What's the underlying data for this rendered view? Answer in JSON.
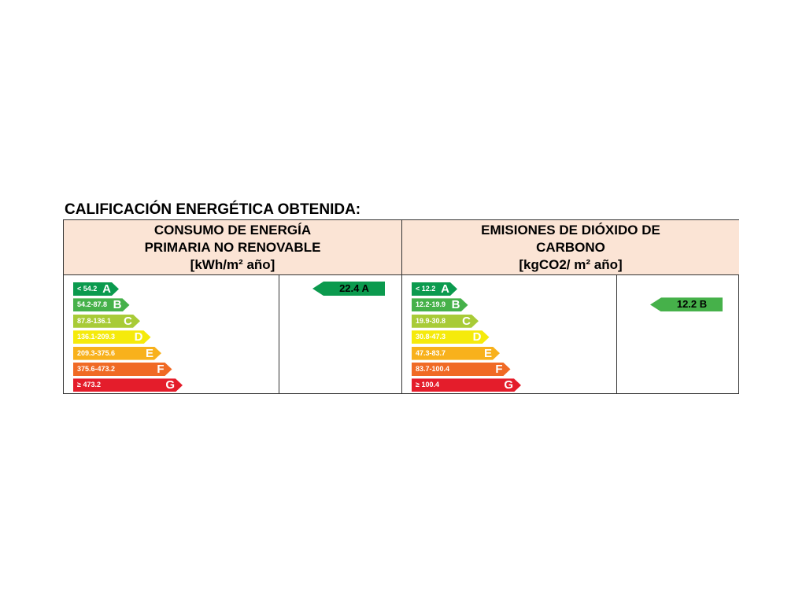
{
  "title": "CALIFICACIÓN ENERGÉTICA OBTENIDA:",
  "energy": {
    "header": [
      "CONSUMO DE ENERGÍA",
      "PRIMARIA NO RENOVABLE",
      "[kWh/m² año]"
    ],
    "bands": [
      {
        "range": "< 54.2",
        "letter": "A",
        "color": "#0b9a4e"
      },
      {
        "range": "54.2-87.8",
        "letter": "B",
        "color": "#46b14a"
      },
      {
        "range": "87.8-136.1",
        "letter": "C",
        "color": "#a8cb37"
      },
      {
        "range": "136.1-209.3",
        "letter": "D",
        "color": "#f5ea0c"
      },
      {
        "range": "209.3-375.6",
        "letter": "E",
        "color": "#f8b11c"
      },
      {
        "range": "375.6-473.2",
        "letter": "F",
        "color": "#f06a25"
      },
      {
        "range": "≥ 473.2",
        "letter": "G",
        "color": "#e41d2b"
      }
    ],
    "result": {
      "label": "22.4 A",
      "band_index": 0,
      "color": "#0b9a4e"
    }
  },
  "co2": {
    "header": [
      "EMISIONES DE DIÓXIDO DE",
      "CARBONO",
      "[kgCO2/ m² año]"
    ],
    "bands": [
      {
        "range": "< 12.2",
        "letter": "A",
        "color": "#0b9a4e"
      },
      {
        "range": "12.2-19.9",
        "letter": "B",
        "color": "#46b14a"
      },
      {
        "range": "19.9-30.8",
        "letter": "C",
        "color": "#a8cb37"
      },
      {
        "range": "30.8-47.3",
        "letter": "D",
        "color": "#f5ea0c"
      },
      {
        "range": "47.3-83.7",
        "letter": "E",
        "color": "#f8b11c"
      },
      {
        "range": "83.7-100.4",
        "letter": "F",
        "color": "#f06a25"
      },
      {
        "range": "≥ 100.4",
        "letter": "G",
        "color": "#e41d2b"
      }
    ],
    "result": {
      "label": "12.2 B",
      "band_index": 1,
      "color": "#46b14a"
    }
  }
}
